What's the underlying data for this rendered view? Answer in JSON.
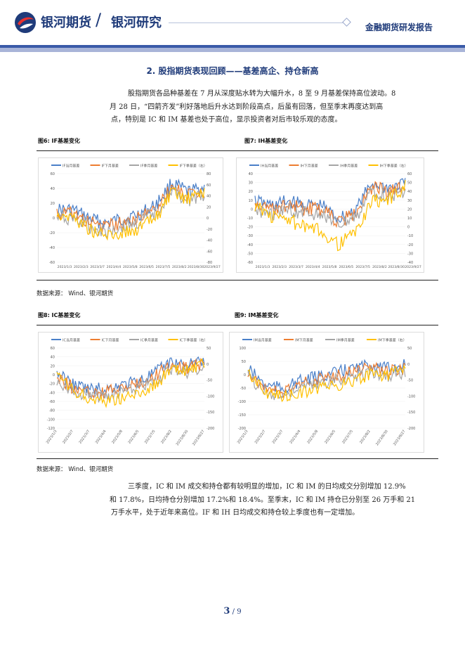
{
  "header": {
    "company": "银河期货",
    "division": "银河研究",
    "report_type": "金融期货研发报告"
  },
  "section": {
    "title": "2.  股指期货表现回顾——基差高企、持仓新高"
  },
  "paragraph1": {
    "line1": "股指期货各品种基差在 7 月从深度贴水转为大幅升水，8 至 9 月基差保持高位波动。8",
    "line2": "月 28 日，“四箭齐发”利好落地后升水达到阶段高点，后虽有回落，但至季末再度达到高",
    "line3": "点，特别是 IC 和 IM 基差也处于高位，显示投资者对后市较乐观的态度。"
  },
  "paragraph2": {
    "line1": "三季度，IC 和 IM 成交和持仓都有较明显的增加，IC 和 IM 的日均成交分别增加 12.9%",
    "line2": "和 17.8%，日均持仓分别增加 17.2%和 18.4%。至季末，IC 和 IM 持仓已分别至 26 万手和 21",
    "line3": "万手水平，处于近年来高位。IF 和 IH 日均成交和持仓较上季度也有一定增加。"
  },
  "sources": {
    "s1": "数据来源：   Wind、银河期货",
    "s2": "数据来源：   Wind、银河期货"
  },
  "colors": {
    "series1": "#4a7fc8",
    "series2": "#ed7d31",
    "series3": "#a5a5a5",
    "series4": "#ffc000"
  },
  "figures": [
    {
      "label": "图6:  IF基差变化",
      "legend": [
        "IF当月基差",
        "IF下月基差",
        "IF季月基差",
        "IF下季基差（右）"
      ],
      "left_ticks": [
        "60",
        "40",
        "20",
        "0",
        "-20",
        "-40",
        "-60"
      ],
      "right_ticks": [
        "80",
        "60",
        "40",
        "20",
        "0",
        "-20",
        "-40",
        "-60",
        "-80"
      ],
      "x_ticks": [
        "2023/1/3",
        "2023/2/3",
        "2023/3/7",
        "2023/4/4",
        "2023/5/8",
        "2023/6/5",
        "2023/7/5",
        "2023/8/2",
        "2023/8/30",
        "2023/9/27"
      ]
    },
    {
      "label": "图7:  IH基差变化",
      "legend": [
        "IH当月基差",
        "IH下月基差",
        "IH季月基差",
        "IH下季基差（右）"
      ],
      "left_ticks": [
        "40",
        "30",
        "20",
        "10",
        "0",
        "-10",
        "-20",
        "-30",
        "-40",
        "-50",
        "-60"
      ],
      "right_ticks": [
        "60",
        "50",
        "40",
        "30",
        "20",
        "10",
        "0",
        "-10",
        "-20",
        "-30",
        "-40"
      ],
      "x_ticks": [
        "2023/1/3",
        "2023/2/3",
        "2023/3/7",
        "2023/4/4",
        "2023/5/8",
        "2023/6/5",
        "2023/7/5",
        "2023/8/2",
        "2023/8/30",
        "2023/9/27"
      ]
    },
    {
      "label": "图8:  IC基差变化",
      "legend": [
        "IC当月基差",
        "IC下月基差",
        "IC季月基差",
        "IC下季基差（右）"
      ],
      "left_ticks": [
        "60",
        "40",
        "20",
        "0",
        "-20",
        "-40",
        "-60",
        "-80",
        "-100",
        "-120"
      ],
      "right_ticks": [
        "50",
        "0",
        "-50",
        "-100",
        "-150",
        "-200"
      ],
      "x_ticks": [
        "2023/1/3",
        "2023/2/7",
        "2023/3/7",
        "2023/4/4",
        "2023/5/8",
        "2023/6/5",
        "2023/7/5",
        "2023/8/2",
        "2023/8/30",
        "2023/9/27"
      ]
    },
    {
      "label": "图9:  IM基差变化",
      "legend": [
        "IM当月基差",
        "IM下月基差",
        "IM季月基差",
        "IM下季基差（右）"
      ],
      "left_ticks": [
        "100",
        "50",
        "0",
        "-50",
        "-100",
        "-150",
        "-200"
      ],
      "right_ticks": [
        "50",
        "0",
        "-50",
        "-100",
        "-150",
        "-200"
      ],
      "x_ticks": [
        "2023/1/3",
        "2023/2/7",
        "2023/3/7",
        "2023/4/4",
        "2023/5/8",
        "2023/6/5",
        "2023/7/5",
        "2023/8/2",
        "2023/8/30",
        "2023/9/27"
      ]
    }
  ],
  "page": {
    "current": "3",
    "sep_total": " / 9"
  }
}
